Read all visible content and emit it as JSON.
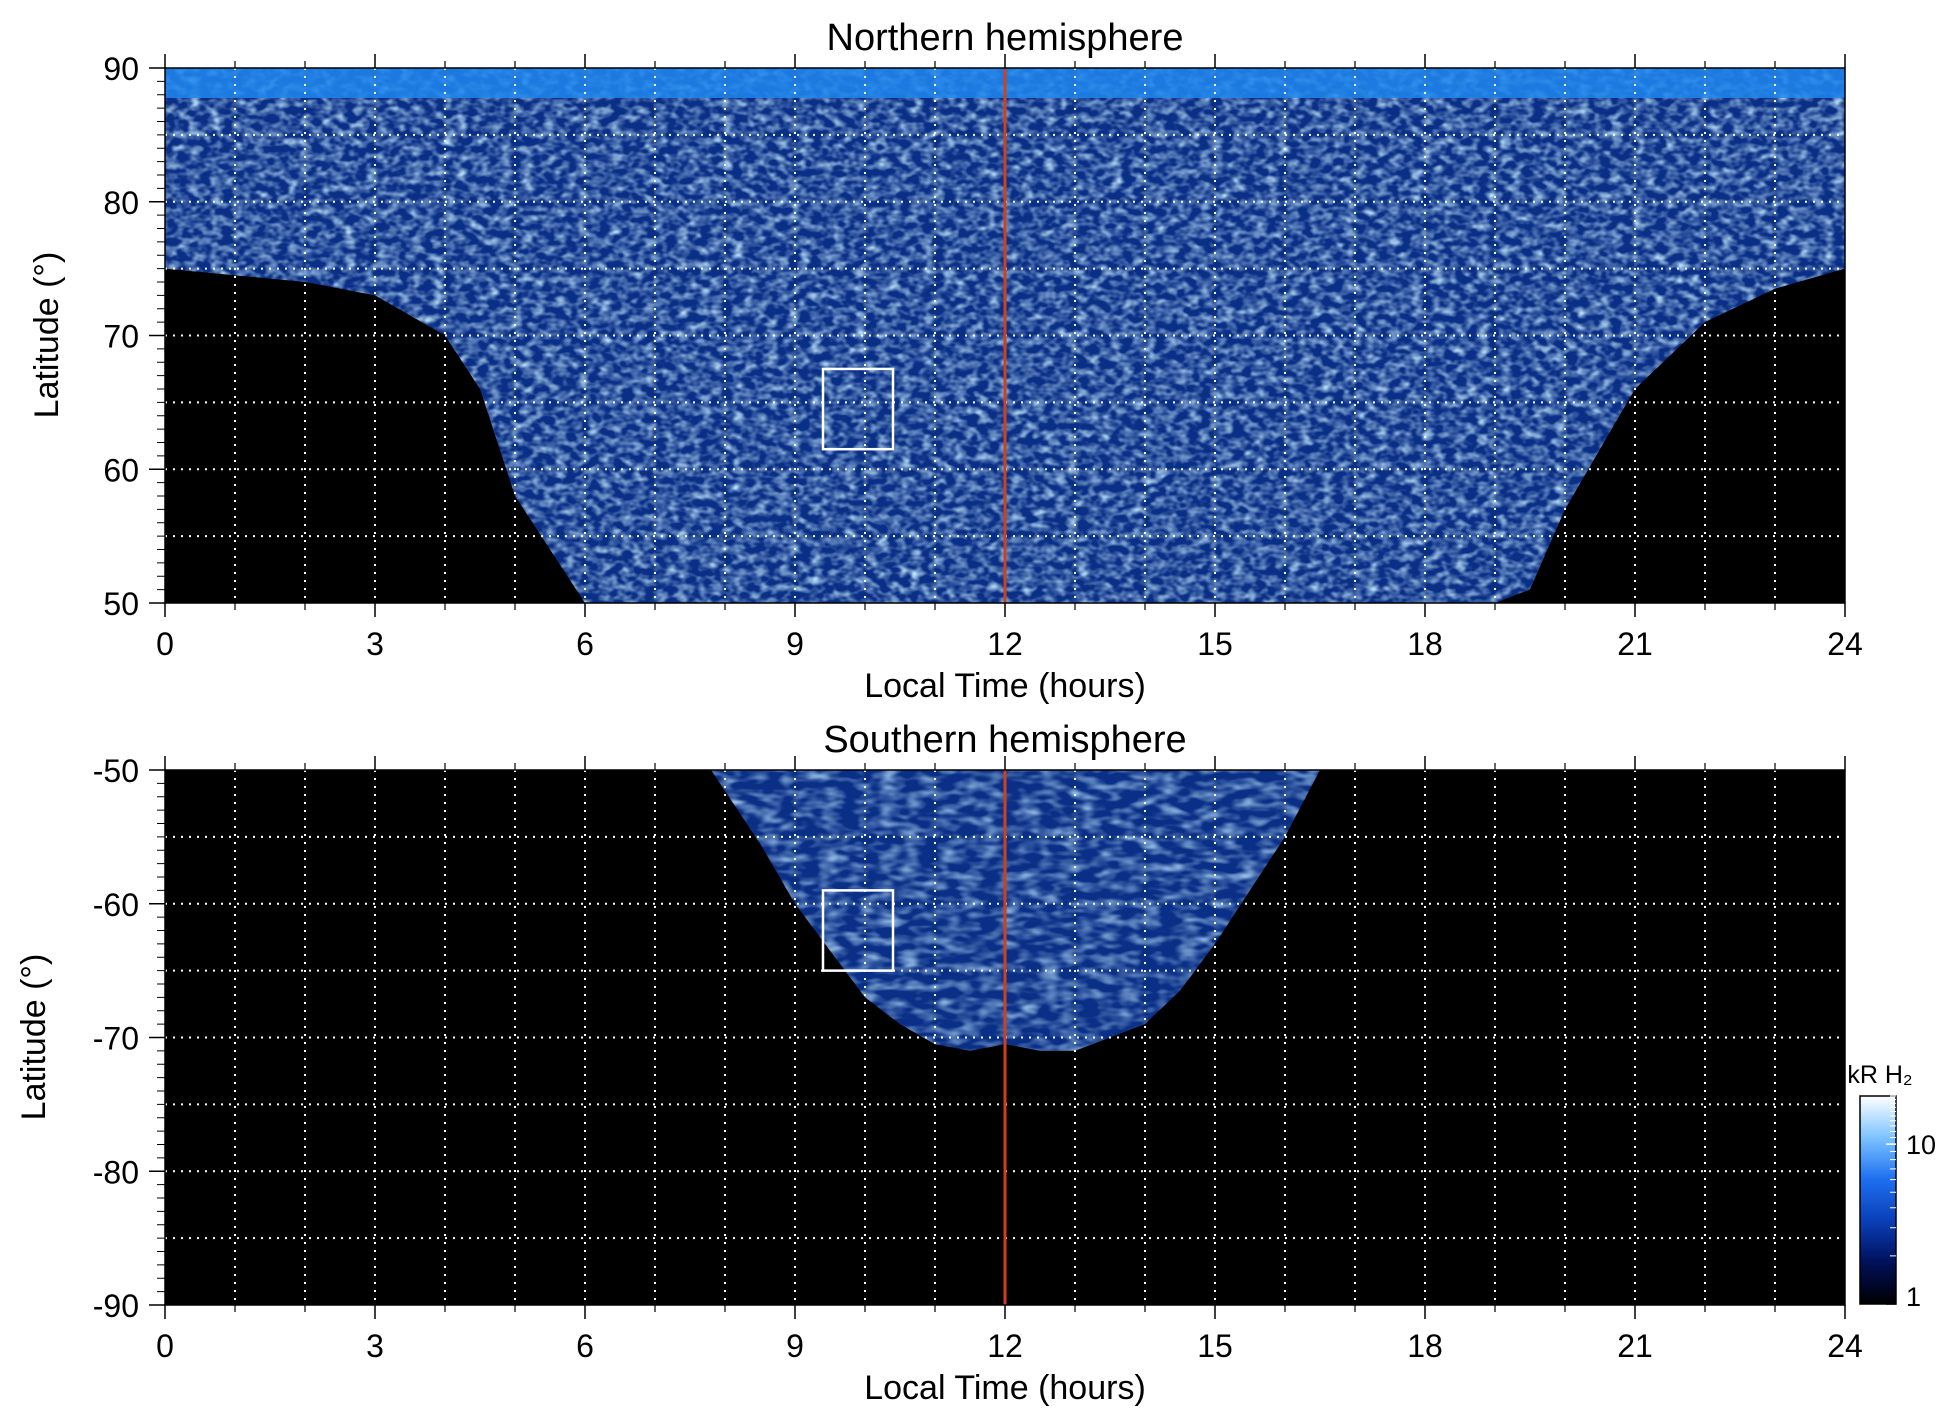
{
  "chart_data": [
    {
      "type": "heatmap",
      "title": "Northern hemisphere",
      "xlabel": "Local Time (hours)",
      "ylabel": "Latitude (°)",
      "xlim": [
        0,
        24
      ],
      "ylim": [
        50,
        90
      ],
      "xticks": [
        0,
        3,
        6,
        9,
        12,
        15,
        18,
        21,
        24
      ],
      "xtick_labels": [
        "0",
        "3",
        "6",
        "9",
        "12",
        "15",
        "18",
        "21",
        "24"
      ],
      "yticks": [
        50,
        60,
        70,
        80,
        90
      ],
      "ytick_labels": [
        "50",
        "60",
        "70",
        "80",
        "90"
      ],
      "grid_x": [
        1,
        2,
        3,
        4,
        5,
        6,
        7,
        8,
        9,
        10,
        11,
        13,
        14,
        15,
        16,
        17,
        18,
        19,
        20,
        21,
        22,
        23
      ],
      "grid_y": [
        55,
        60,
        65,
        70,
        75,
        80,
        85
      ],
      "grid": true,
      "coverage_boundary": {
        "lt": [
          0,
          1,
          2,
          3,
          4,
          4.5,
          5,
          6,
          7,
          8,
          9,
          10,
          11,
          12,
          13,
          14,
          15,
          16,
          17,
          18,
          19,
          19.5,
          20,
          21,
          22,
          23,
          24
        ],
        "lat": [
          75,
          74.5,
          74,
          73,
          70,
          66,
          58,
          50,
          50,
          50,
          50,
          50,
          50,
          50,
          50,
          50,
          50,
          50,
          50,
          50,
          50,
          51,
          57,
          66,
          71,
          73.5,
          75
        ]
      },
      "reference_line": {
        "x": 12,
        "color": "#d0401b"
      },
      "region_box": {
        "x": [
          9.4,
          10.4
        ],
        "y": [
          61.5,
          67.5
        ],
        "color": "#ffffff"
      }
    },
    {
      "type": "heatmap",
      "title": "Southern hemisphere",
      "xlabel": "Local Time (hours)",
      "ylabel": "Latitude (°)",
      "xlim": [
        0,
        24
      ],
      "ylim": [
        -90,
        -50
      ],
      "xticks": [
        0,
        3,
        6,
        9,
        12,
        15,
        18,
        21,
        24
      ],
      "xtick_labels": [
        "0",
        "3",
        "6",
        "9",
        "12",
        "15",
        "18",
        "21",
        "24"
      ],
      "yticks": [
        -90,
        -80,
        -70,
        -60,
        -50
      ],
      "ytick_labels": [
        "-90",
        "-80",
        "-70",
        "-60",
        "-50"
      ],
      "grid_x": [
        1,
        2,
        3,
        4,
        5,
        6,
        7,
        8,
        9,
        10,
        11,
        13,
        14,
        15,
        16,
        17,
        18,
        19,
        20,
        21,
        22,
        23
      ],
      "grid_y": [
        -85,
        -80,
        -75,
        -70,
        -65,
        -60,
        -55
      ],
      "grid": true,
      "coverage_boundary": {
        "lt": [
          7.8,
          8.5,
          9,
          9.5,
          10,
          10.5,
          11,
          11.5,
          12,
          12.5,
          13,
          13.5,
          14,
          14.5,
          15,
          15.5,
          16,
          16.5
        ],
        "lat": [
          -50,
          -55.5,
          -60,
          -63.5,
          -67,
          -69,
          -70.5,
          -71,
          -70.5,
          -71,
          -71,
          -70,
          -69,
          -66.5,
          -63,
          -59,
          -55,
          -50
        ]
      },
      "reference_line": {
        "x": 12,
        "color": "#d0401b"
      },
      "region_box": {
        "x": [
          9.4,
          10.4
        ],
        "y": [
          -65,
          -59
        ],
        "color": "#ffffff"
      }
    }
  ],
  "colorbar": {
    "label": "kR H₂",
    "scale": "log",
    "range": [
      1,
      20
    ],
    "ticks": [
      1,
      10
    ],
    "tick_labels": [
      "1",
      "10"
    ],
    "colors": [
      "#000000",
      "#00105a",
      "#0a3fb8",
      "#1e6ff0",
      "#7cc3ff",
      "#ffffff"
    ]
  }
}
